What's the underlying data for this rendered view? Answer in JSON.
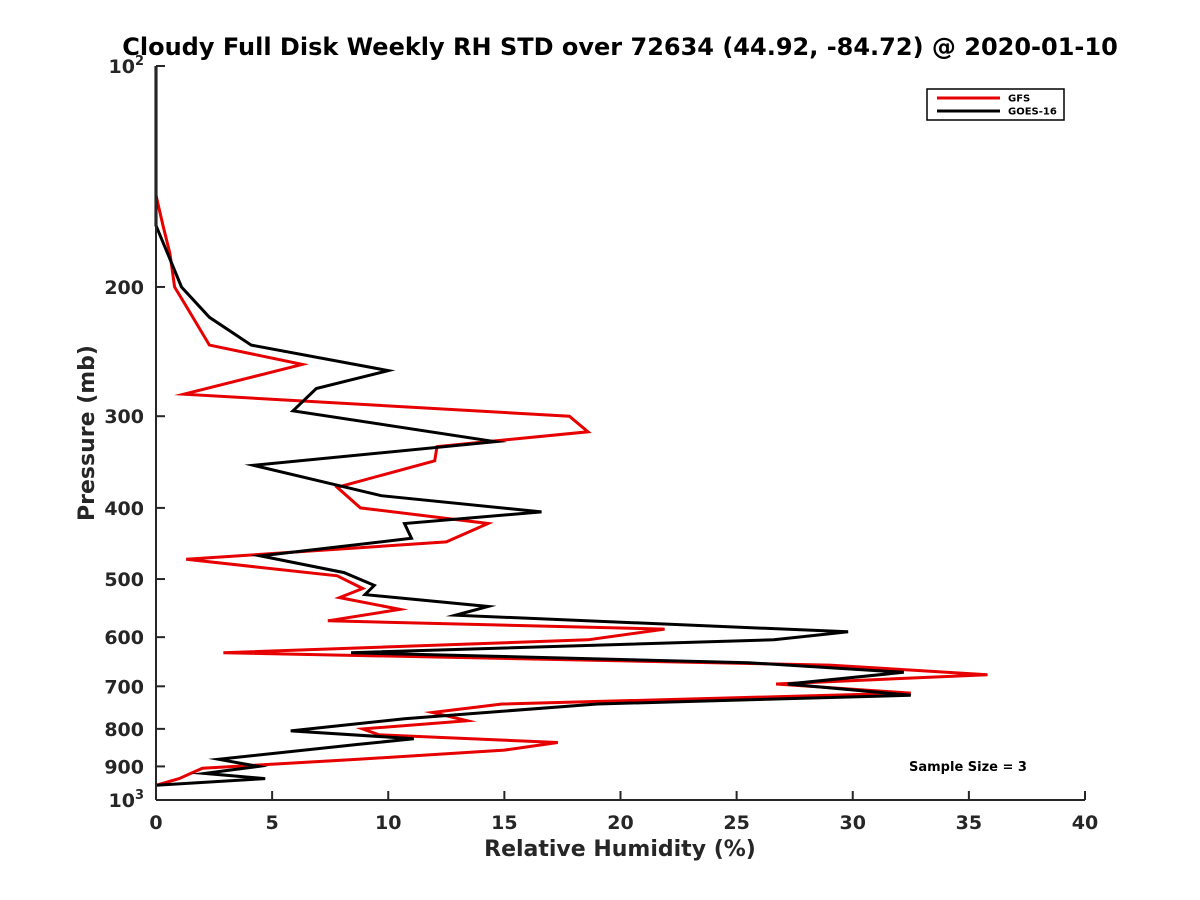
{
  "chart_data": {
    "type": "line",
    "title": "Cloudy Full Disk Weekly RH STD over 72634 (44.92, -84.72) @ 2020-01-10",
    "xlabel": "Relative Humidity (%)",
    "ylabel": "Pressure (mb)",
    "xlim": [
      0,
      40
    ],
    "ylim": [
      100,
      1000
    ],
    "y_scale": "log",
    "y_reversed": true,
    "x_ticks": [
      "0",
      "5",
      "10",
      "15",
      "20",
      "25",
      "30",
      "35",
      "40"
    ],
    "y_ticks": [
      {
        "value": 100,
        "base": "10",
        "exp": "2"
      },
      {
        "value": 200,
        "label": "200"
      },
      {
        "value": 300,
        "label": "300"
      },
      {
        "value": 400,
        "label": "400"
      },
      {
        "value": 500,
        "label": "500"
      },
      {
        "value": 600,
        "label": "600"
      },
      {
        "value": 700,
        "label": "700"
      },
      {
        "value": 800,
        "label": "800"
      },
      {
        "value": 900,
        "label": "900"
      },
      {
        "value": 1000,
        "base": "10",
        "exp": "3"
      }
    ],
    "grid": false,
    "legend_position": "top-right",
    "annotation": "Sample Size = 3",
    "series": [
      {
        "name": "GFS",
        "color": "#e60000",
        "points": [
          [
            0,
            100
          ],
          [
            0,
            150
          ],
          [
            0.3,
            165
          ],
          [
            0.6,
            180
          ],
          [
            0.8,
            200
          ],
          [
            1.4,
            215
          ],
          [
            2.3,
            240
          ],
          [
            6.3,
            255
          ],
          [
            1.2,
            280
          ],
          [
            17.8,
            300
          ],
          [
            18.6,
            315
          ],
          [
            12.1,
            330
          ],
          [
            12.0,
            345
          ],
          [
            7.8,
            375
          ],
          [
            8.8,
            400
          ],
          [
            14.3,
            420
          ],
          [
            12.5,
            445
          ],
          [
            1.3,
            470
          ],
          [
            7.8,
            495
          ],
          [
            8.9,
            515
          ],
          [
            7.9,
            530
          ],
          [
            10.5,
            550
          ],
          [
            7.4,
            570
          ],
          [
            21.9,
            585
          ],
          [
            18.6,
            605
          ],
          [
            2.9,
            630
          ],
          [
            29.0,
            655
          ],
          [
            35.8,
            675
          ],
          [
            26.7,
            695
          ],
          [
            32.5,
            715
          ],
          [
            14.9,
            740
          ],
          [
            11.9,
            760
          ],
          [
            13.4,
            780
          ],
          [
            8.9,
            800
          ],
          [
            9.6,
            815
          ],
          [
            17.3,
            835
          ],
          [
            15.0,
            855
          ],
          [
            8.7,
            880
          ],
          [
            2.0,
            905
          ],
          [
            1.5,
            920
          ],
          [
            1.0,
            935
          ],
          [
            0,
            955
          ]
        ]
      },
      {
        "name": "GOES-16",
        "color": "#000000",
        "points": [
          [
            0,
            100
          ],
          [
            0,
            150
          ],
          [
            0,
            165
          ],
          [
            0.5,
            180
          ],
          [
            1.1,
            200
          ],
          [
            2.3,
            220
          ],
          [
            4.1,
            240
          ],
          [
            10.0,
            260
          ],
          [
            6.9,
            275
          ],
          [
            5.9,
            295
          ],
          [
            14.6,
            325
          ],
          [
            4.2,
            350
          ],
          [
            9.7,
            385
          ],
          [
            16.6,
            405
          ],
          [
            10.7,
            420
          ],
          [
            11.0,
            440
          ],
          [
            4.5,
            465
          ],
          [
            8.1,
            490
          ],
          [
            9.4,
            510
          ],
          [
            9.0,
            525
          ],
          [
            14.3,
            545
          ],
          [
            12.9,
            560
          ],
          [
            29.8,
            590
          ],
          [
            26.6,
            605
          ],
          [
            8.4,
            630
          ],
          [
            25.5,
            650
          ],
          [
            32.2,
            670
          ],
          [
            27.2,
            695
          ],
          [
            32.5,
            720
          ],
          [
            19.0,
            740
          ],
          [
            10.7,
            775
          ],
          [
            5.8,
            805
          ],
          [
            11.1,
            825
          ],
          [
            8.7,
            840
          ],
          [
            2.7,
            880
          ],
          [
            4.4,
            900
          ],
          [
            2.1,
            920
          ],
          [
            4.7,
            935
          ],
          [
            0,
            955
          ]
        ]
      }
    ]
  }
}
